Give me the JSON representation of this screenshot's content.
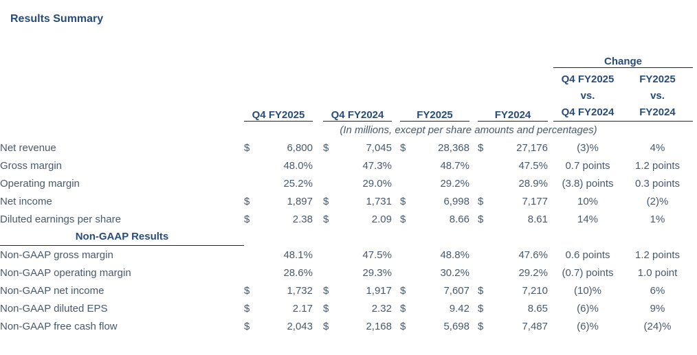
{
  "title": "Results Summary",
  "change_header": "Change",
  "note": "(In millions, except per share amounts and percentages)",
  "currency_symbol": "$",
  "columns": [
    "Q4 FY2025",
    "Q4 FY2024",
    "FY2025",
    "FY2024"
  ],
  "change_columns": [
    [
      "Q4 FY2025",
      "vs.",
      "Q4 FY2024"
    ],
    [
      "FY2025",
      "vs.",
      "FY2024"
    ]
  ],
  "sections": [
    {
      "header": null,
      "rows": [
        {
          "label": "Net revenue",
          "dollar": true,
          "values": [
            "6,800",
            "7,045",
            "28,368",
            "27,176"
          ],
          "changes": [
            "(3)%",
            "4%"
          ]
        },
        {
          "label": "Gross margin",
          "dollar": false,
          "values": [
            "48.0%",
            "47.3%",
            "48.7%",
            "47.5%"
          ],
          "changes": [
            "0.7 points",
            "1.2 points"
          ]
        },
        {
          "label": "Operating margin",
          "dollar": false,
          "values": [
            "25.2%",
            "29.0%",
            "29.2%",
            "28.9%"
          ],
          "changes": [
            "(3.8) points",
            "0.3 points"
          ]
        },
        {
          "label": "Net income",
          "dollar": true,
          "values": [
            "1,897",
            "1,731",
            "6,998",
            "7,177"
          ],
          "changes": [
            "10%",
            "(2)%"
          ]
        },
        {
          "label": "Diluted earnings per share",
          "dollar": true,
          "values": [
            "2.38",
            "2.09",
            "8.66",
            "8.61"
          ],
          "changes": [
            "14%",
            "1%"
          ]
        }
      ]
    },
    {
      "header": "Non-GAAP Results",
      "rows": [
        {
          "label": "Non-GAAP gross margin",
          "dollar": false,
          "values": [
            "48.1%",
            "47.5%",
            "48.8%",
            "47.6%"
          ],
          "changes": [
            "0.6 points",
            "1.2 points"
          ]
        },
        {
          "label": "Non-GAAP operating margin",
          "dollar": false,
          "values": [
            "28.6%",
            "29.3%",
            "30.2%",
            "29.2%"
          ],
          "changes": [
            "(0.7) points",
            "1.0 point"
          ]
        },
        {
          "label": "Non-GAAP net income",
          "dollar": true,
          "values": [
            "1,732",
            "1,917",
            "7,607",
            "7,210"
          ],
          "changes": [
            "(10)%",
            "6%"
          ]
        },
        {
          "label": "Non-GAAP diluted EPS",
          "dollar": true,
          "values": [
            "2.17",
            "2.32",
            "9.42",
            "8.65"
          ],
          "changes": [
            "(6)%",
            "9%"
          ]
        },
        {
          "label": "Non-GAAP free cash flow",
          "dollar": true,
          "values": [
            "2,043",
            "2,168",
            "5,698",
            "7,487"
          ],
          "changes": [
            "(6)%",
            "(24)%"
          ]
        }
      ]
    }
  ],
  "colors": {
    "header_navy": "#274B7A",
    "body_slate": "#47596E",
    "rule": "#222222",
    "background": "#ffffff"
  }
}
